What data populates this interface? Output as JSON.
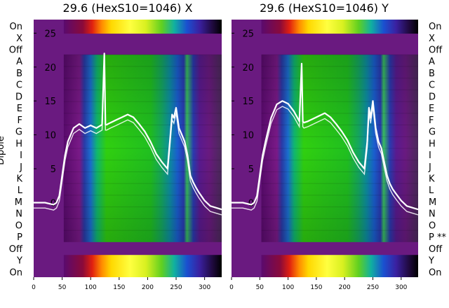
{
  "chart_data": [
    {
      "type": "heatmap",
      "title": "29.6 (HexS10=1046) X",
      "ylabel": "Dipole",
      "row_labels": [
        "On",
        "X",
        "Off",
        "A",
        "B",
        "C",
        "D",
        "E",
        "F",
        "G",
        "H",
        "I",
        "J",
        "K",
        "L",
        "M",
        "N",
        "O",
        "P",
        "Off",
        "Y",
        "On"
      ],
      "y_ticks": [
        0,
        5,
        10,
        15,
        20,
        25
      ],
      "x_ticks": [
        0,
        50,
        100,
        150,
        200,
        250,
        300
      ],
      "xlim": [
        0,
        330
      ],
      "ylim": [
        -11,
        27
      ],
      "overlay_line": {
        "x": [
          0,
          20,
          35,
          40,
          45,
          50,
          55,
          60,
          70,
          80,
          90,
          100,
          110,
          120,
          124,
          126,
          128,
          135,
          145,
          155,
          165,
          175,
          185,
          195,
          205,
          215,
          225,
          235,
          240,
          243,
          246,
          250,
          255,
          260,
          265,
          270,
          275,
          280,
          285,
          290,
          300,
          310,
          330
        ],
        "y": [
          0,
          0,
          -0.3,
          0,
          1,
          4,
          7,
          9,
          11,
          11.6,
          11,
          11.4,
          11,
          11.5,
          22,
          11.5,
          11.5,
          11.8,
          12.2,
          12.6,
          13,
          12.6,
          11.6,
          10.5,
          9,
          7.2,
          6,
          5,
          10,
          13,
          12.5,
          14,
          11,
          10,
          9,
          7,
          4,
          3,
          2.2,
          1.5,
          0.3,
          -0.5,
          -1
        ]
      }
    },
    {
      "type": "heatmap",
      "title": "29.6 (HexS10=1046) Y",
      "ylabel": "",
      "row_labels": [
        "On",
        "X",
        "Off",
        "A",
        "B",
        "C",
        "D",
        "E",
        "F",
        "G",
        "H",
        "I",
        "J",
        "K",
        "L",
        "M",
        "N",
        "O",
        "P **",
        "Off",
        "Y",
        "On"
      ],
      "y_ticks": [
        0,
        5,
        10,
        15,
        20,
        25
      ],
      "x_ticks": [
        0,
        50,
        100,
        150,
        200,
        250,
        300
      ],
      "xlim": [
        0,
        330
      ],
      "ylim": [
        -11,
        27
      ],
      "overlay_line": {
        "x": [
          0,
          20,
          35,
          40,
          45,
          50,
          55,
          60,
          70,
          80,
          90,
          100,
          110,
          120,
          124,
          126,
          128,
          135,
          145,
          155,
          165,
          175,
          185,
          195,
          205,
          215,
          225,
          235,
          240,
          243,
          246,
          250,
          255,
          260,
          265,
          270,
          275,
          280,
          285,
          290,
          300,
          310,
          330
        ],
        "y": [
          0,
          0,
          -0.3,
          0,
          1,
          4,
          7,
          9,
          12.5,
          14.5,
          15,
          14.6,
          13.5,
          12,
          20.5,
          12,
          11.8,
          12,
          12.4,
          12.8,
          13.2,
          12.6,
          11.6,
          10.5,
          9.2,
          7.4,
          6,
          5,
          9,
          14,
          12.5,
          15,
          11,
          9,
          8,
          6,
          4,
          2.8,
          2,
          1.4,
          0.3,
          -0.5,
          -1
        ]
      }
    }
  ]
}
